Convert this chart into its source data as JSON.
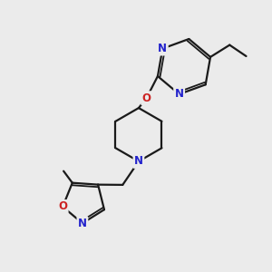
{
  "bg_color": "#ebebeb",
  "bond_color": "#1a1a1a",
  "nitrogen_color": "#2222cc",
  "oxygen_color": "#cc2222",
  "line_width": 1.6,
  "font_size": 8.5,
  "xlim": [
    0,
    10
  ],
  "ylim": [
    0,
    10
  ]
}
